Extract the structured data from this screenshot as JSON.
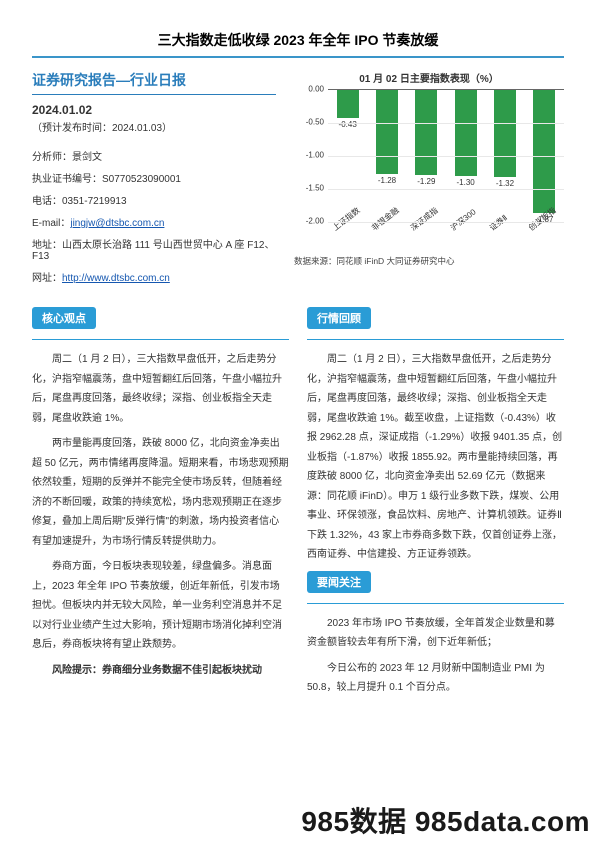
{
  "title": "三大指数走低收绿 2023 年全年 IPO 节奏放缓",
  "header": {
    "report_type": "证券研究报告—行业日报",
    "date": "2024.01.02",
    "pubdate": "（预计发布时间：2024.01.03）",
    "analyst_label": "分析师：",
    "analyst_name": "景剑文",
    "license_label": "执业证书编号：",
    "license_no": "S0770523090001",
    "phone_label": "电话：",
    "phone": "0351-7219913",
    "email_label": "E-mail：",
    "email": "jingjw@dtsbc.com.cn",
    "address_label": "地址：",
    "address": "山西太原长治路 111 号山西世贸中心 A 座 F12、F13",
    "website_label": "网址：",
    "website": "http://www.dtsbc.com.cn"
  },
  "chart": {
    "title": "01 月 02 日主要指数表现（%）",
    "type": "bar",
    "ylim": [
      -2.0,
      0.0
    ],
    "ytick_step": 0.5,
    "yticks": [
      "0.00",
      "-0.50",
      "-1.00",
      "-1.50",
      "-2.00"
    ],
    "categories": [
      "上证指数",
      "非银金融",
      "深证成指",
      "沪深300",
      "证券Ⅱ",
      "创业板指"
    ],
    "values": [
      -0.43,
      -1.28,
      -1.29,
      -1.3,
      -1.32,
      -1.87
    ],
    "value_labels": [
      "-0.43",
      "-1.28",
      "-1.29",
      "-1.30",
      "-1.32",
      "-1.87"
    ],
    "bar_color": "#2e9b4a",
    "grid_color": "#e8e8e8",
    "source": "数据来源：同花顺 iFinD 大同证券研究中心"
  },
  "sections": {
    "core_view_title": "核心观点",
    "core_view": [
      "周二（1 月 2 日），三大指数早盘低开，之后走势分化，沪指窄幅震荡，盘中短暂翻红后回落，午盘小幅拉升后，尾盘再度回落，最终收绿；深指、创业板指全天走弱，尾盘收跌逾 1%。",
      "两市量能再度回落，跌破 8000 亿，北向资金净卖出超 50 亿元，两市情绪再度降温。短期来看，市场悲观预期依然较重，短期的反弹并不能完全使市场反转，但随着经济的不断回暖，政策的持续宽松，场内悲观预期正在逐步修复，叠加上周后期\"反弹行情\"的刺激，场内投资者信心有望加速提升，为市场行情反转提供助力。",
      "券商方面，今日板块表现较差，绿盘偏多。消息面上，2023 年全年 IPO 节奏放缓，创近年新低，引发市场担忧。但板块内并无较大风险，单一业务利空消息并不足以对行业业绩产生过大影响，预计短期市场消化掉利空消息后，券商板块将有望止跌颓势。"
    ],
    "risk_label": "风险提示：",
    "risk_text": "券商细分业务数据不佳引起板块扰动",
    "market_review_title": "行情回顾",
    "market_review": [
      "周二（1 月 2 日），三大指数早盘低开，之后走势分化，沪指窄幅震荡，盘中短暂翻红后回落，午盘小幅拉升后，尾盘再度回落，最终收绿；深指、创业板指全天走弱，尾盘收跌逾 1%。截至收盘，上证指数（-0.43%）收报 2962.28 点，深证成指（-1.29%）收报 9401.35 点，创业板指（-1.87%）收报 1855.92。两市量能持续回落，再度跌破 8000 亿，北向资金净卖出 52.69 亿元（数据来源：同花顺 iFinD）。申万 1 级行业多数下跌，煤炭、公用事业、环保领涨，食品饮料、房地产、计算机领跌。证券Ⅱ下跌 1.32%，43 家上市券商多数下跌，仅首创证券上涨，西南证券、中信建投、方正证券领跌。"
    ],
    "news_focus_title": "要闻关注",
    "news_focus": [
      "2023 年市场 IPO 节奏放缓，全年首发企业数量和募资金额皆较去年有所下滑，创下近年新低；",
      "今日公布的 2023 年 12 月财新中国制造业 PMI 为 50.8，较上月提升 0.1 个百分点。"
    ]
  },
  "watermark": "985数据 985data.com"
}
